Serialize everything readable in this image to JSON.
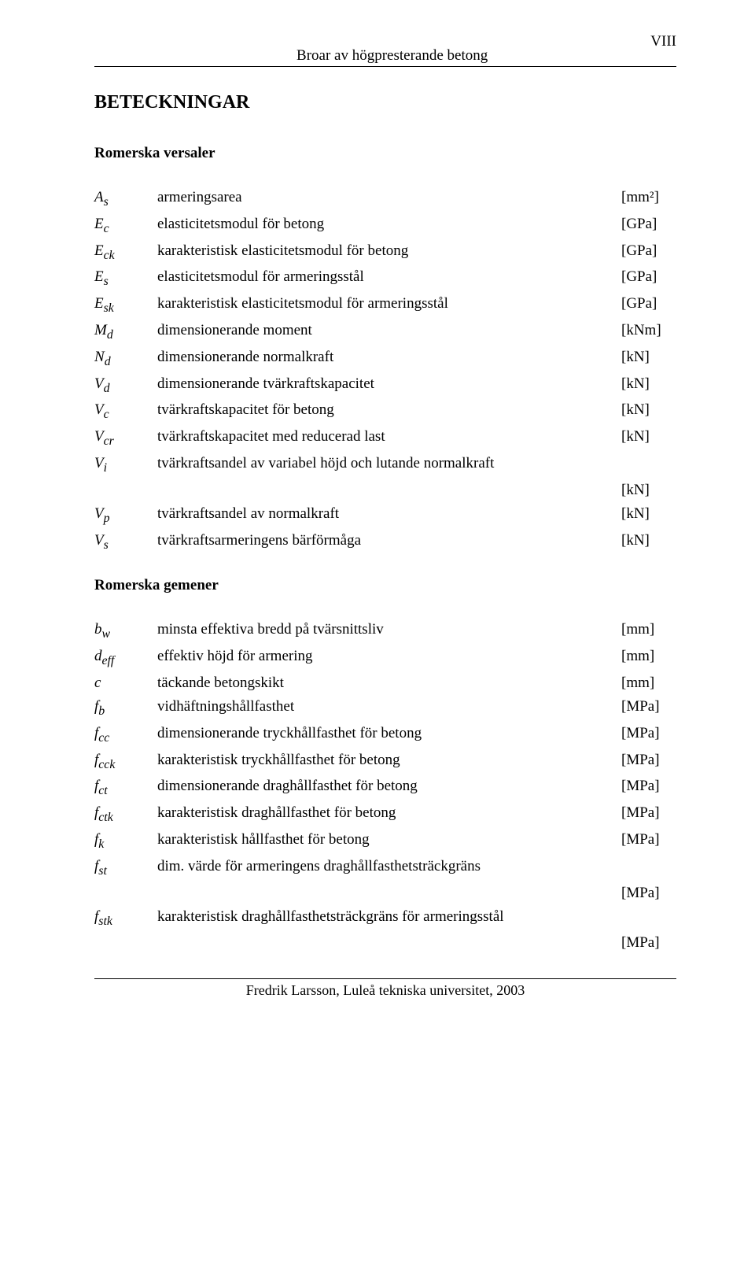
{
  "header": {
    "title": "Broar av högpresterande betong",
    "page_number": "VIII"
  },
  "main_heading": "BETECKNINGAR",
  "section1": {
    "heading": "Romerska versaler",
    "rows": [
      {
        "sym": "A",
        "sub": "s",
        "desc": "armeringsarea",
        "unit": "[mm²]"
      },
      {
        "sym": "E",
        "sub": "c",
        "desc": "elasticitetsmodul för betong",
        "unit": "[GPa]"
      },
      {
        "sym": "E",
        "sub": "ck",
        "desc": "karakteristisk elasticitetsmodul för betong",
        "unit": "[GPa]"
      },
      {
        "sym": "E",
        "sub": "s",
        "desc": "elasticitetsmodul för armeringsstål",
        "unit": "[GPa]"
      },
      {
        "sym": "E",
        "sub": "sk",
        "desc": "karakteristisk elasticitetsmodul för armeringsstål",
        "unit": "[GPa]"
      },
      {
        "sym": "M",
        "sub": "d",
        "desc": "dimensionerande moment",
        "unit": "[kNm]"
      },
      {
        "sym": "N",
        "sub": "d",
        "desc": "dimensionerande normalkraft",
        "unit": "[kN]"
      },
      {
        "sym": "V",
        "sub": "d",
        "desc": "dimensionerande tvärkraftskapacitet",
        "unit": "[kN]"
      },
      {
        "sym": "V",
        "sub": "c",
        "desc": "tvärkraftskapacitet för betong",
        "unit": "[kN]"
      },
      {
        "sym": "V",
        "sub": "cr",
        "desc": "tvärkraftskapacitet med reducerad last",
        "unit": "[kN]"
      },
      {
        "sym": "V",
        "sub": "i",
        "desc": "tvärkraftsandel av variabel höjd och lutande normalkraft",
        "unit": "",
        "cont_unit": "[kN]"
      },
      {
        "sym": "V",
        "sub": "p",
        "desc": "tvärkraftsandel av normalkraft",
        "unit": "[kN]"
      },
      {
        "sym": "V",
        "sub": "s",
        "desc": "tvärkraftsarmeringens bärförmåga",
        "unit": "[kN]"
      }
    ]
  },
  "section2": {
    "heading": "Romerska gemener",
    "rows": [
      {
        "sym": "b",
        "sub": "w",
        "desc": "minsta effektiva bredd på tvärsnittsliv",
        "unit": "[mm]"
      },
      {
        "sym": "d",
        "sub": "eff",
        "desc": "effektiv höjd för armering",
        "unit": "[mm]"
      },
      {
        "sym": "c",
        "sub": "",
        "desc": "täckande betongskikt",
        "unit": "[mm]"
      },
      {
        "sym": "f",
        "sub": "b",
        "desc": "vidhäftningshållfasthet",
        "unit": "[MPa]"
      },
      {
        "sym": "f",
        "sub": "cc",
        "desc": "dimensionerande tryckhållfasthet för betong",
        "unit": "[MPa]"
      },
      {
        "sym": "f",
        "sub": "cck",
        "desc": "karakteristisk tryckhållfasthet för betong",
        "unit": "[MPa]"
      },
      {
        "sym": "f",
        "sub": "ct",
        "desc": "dimensionerande draghållfasthet för betong",
        "unit": "[MPa]"
      },
      {
        "sym": "f",
        "sub": "ctk",
        "desc": "karakteristisk draghållfasthet för betong",
        "unit": "[MPa]"
      },
      {
        "sym": "f",
        "sub": "k",
        "desc": "karakteristisk hållfasthet för betong",
        "unit": "[MPa]"
      },
      {
        "sym": "f",
        "sub": "st",
        "desc": "dim. värde för armeringens draghållfasthetsträckgräns",
        "unit": "",
        "cont_unit": "[MPa]"
      },
      {
        "sym": "f",
        "sub": "stk",
        "desc": "karakteristisk draghållfasthetsträckgräns för armeringsstål",
        "unit": "",
        "cont_unit": "[MPa]"
      }
    ]
  },
  "footer": "Fredrik Larsson, Luleå tekniska universitet, 2003"
}
